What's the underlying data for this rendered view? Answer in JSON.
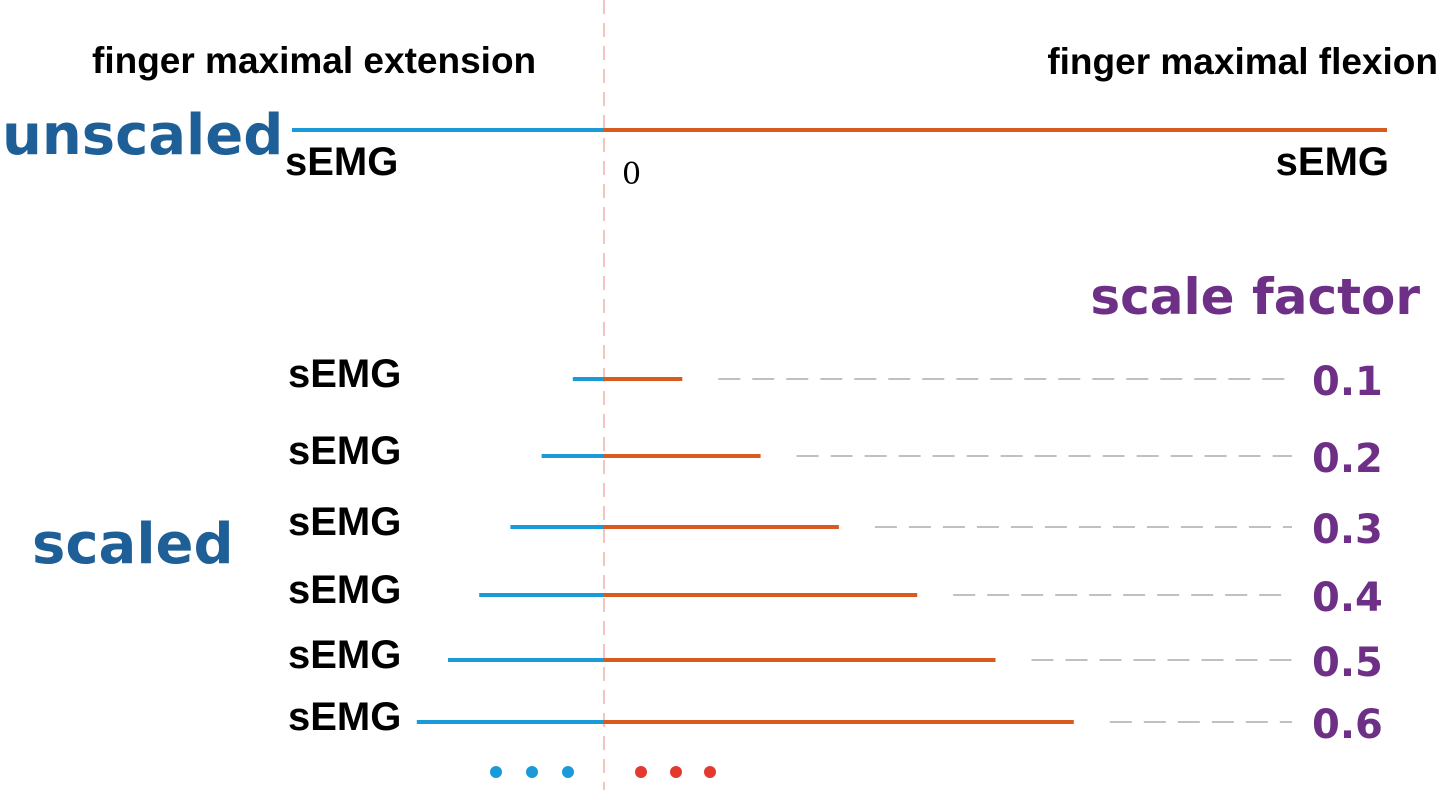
{
  "header": {
    "left_title": "finger maximal extension",
    "right_title": "finger maximal flexion"
  },
  "unscaled": {
    "label": "unscaled",
    "left_axis_label": "sEMG",
    "right_axis_label": "sEMG",
    "zero_label": "0"
  },
  "scaled": {
    "label": "scaled",
    "scale_factor_heading": "scale factor",
    "rows": [
      {
        "label": "sEMG",
        "factor": "0.1",
        "value": 0.1
      },
      {
        "label": "sEMG",
        "factor": "0.2",
        "value": 0.2
      },
      {
        "label": "sEMG",
        "factor": "0.3",
        "value": 0.3
      },
      {
        "label": "sEMG",
        "factor": "0.4",
        "value": 0.4
      },
      {
        "label": "sEMG",
        "factor": "0.5",
        "value": 0.5
      },
      {
        "label": "sEMG",
        "factor": "0.6",
        "value": 0.6
      }
    ]
  },
  "colors": {
    "extension": "#1a9ad9",
    "flexion": "#d95a1f",
    "zero_line": "#f4c4c0",
    "guide_dash": "#9a9a9a",
    "label_blue": "#1d5f96",
    "label_purple": "#6e2f86",
    "dot_blue": "#1a9ad9",
    "dot_red": "#e23a2f"
  }
}
